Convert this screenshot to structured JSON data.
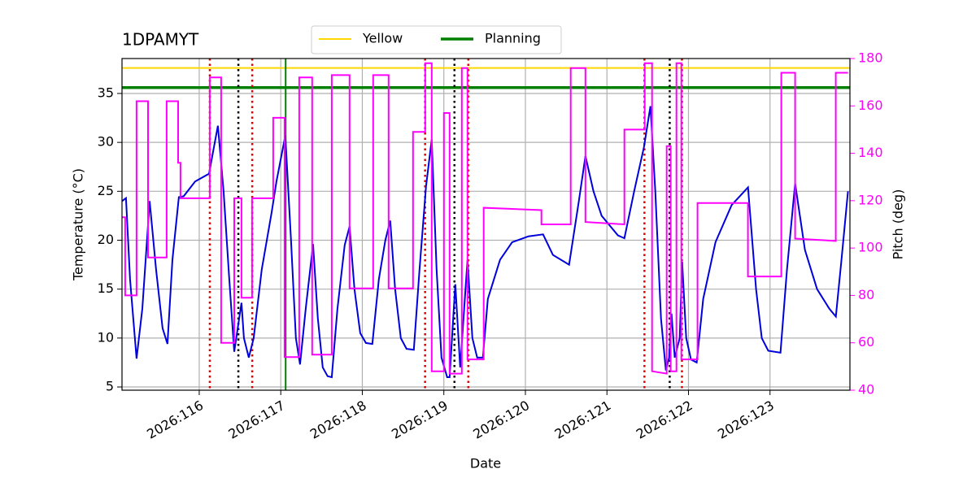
{
  "chart_data": {
    "type": "line",
    "title": "1DPAMYT",
    "x_label": "Date",
    "y_label": "Temperature (°C)",
    "y2_label": "Pitch (deg)",
    "y2_color": "#ff00ff",
    "xlim": [
      115.053,
      123.98
    ],
    "ylim": [
      4.67,
      38.57
    ],
    "y2lim": [
      40,
      180
    ],
    "xticks": [
      {
        "value": 116,
        "label": "2026:116"
      },
      {
        "value": 117,
        "label": "2026:117"
      },
      {
        "value": 118,
        "label": "2026:118"
      },
      {
        "value": 119,
        "label": "2026:119"
      },
      {
        "value": 120,
        "label": "2026:120"
      },
      {
        "value": 121,
        "label": "2026:121"
      },
      {
        "value": 122,
        "label": "2026:122"
      },
      {
        "value": 123,
        "label": "2026:123"
      }
    ],
    "yticks": [
      5,
      10,
      15,
      20,
      25,
      30,
      35
    ],
    "y2ticks": [
      40,
      60,
      80,
      100,
      120,
      140,
      160,
      180
    ],
    "grid": true,
    "legend": "top",
    "hlines": [
      {
        "name": "Yellow",
        "color": "#ffd700",
        "y": 37.6,
        "width": 2
      },
      {
        "name": "Planning",
        "color": "#008000",
        "y": 35.6,
        "width": 3.5
      }
    ],
    "vlines": [
      {
        "x": 116.13,
        "color": "#e00000",
        "dash": "dotted"
      },
      {
        "x": 116.65,
        "color": "#e00000",
        "dash": "dotted"
      },
      {
        "x": 118.77,
        "color": "#e00000",
        "dash": "dotted"
      },
      {
        "x": 119.3,
        "color": "#e00000",
        "dash": "dotted"
      },
      {
        "x": 121.46,
        "color": "#e00000",
        "dash": "dotted"
      },
      {
        "x": 121.92,
        "color": "#e00000",
        "dash": "dotted"
      },
      {
        "x": 116.48,
        "color": "#000000",
        "dash": "dotted"
      },
      {
        "x": 119.13,
        "color": "#000000",
        "dash": "dotted"
      },
      {
        "x": 121.77,
        "color": "#000000",
        "dash": "dotted"
      },
      {
        "x": 117.06,
        "color": "#008000",
        "dash": "solid"
      }
    ],
    "series": [
      {
        "color": "#0000dd",
        "axis": "y",
        "x": [
          115.053,
          115.102,
          115.152,
          115.232,
          115.302,
          115.392,
          115.471,
          115.551,
          115.611,
          115.671,
          115.75,
          115.81,
          115.95,
          116.12,
          116.229,
          116.299,
          116.369,
          116.429,
          116.518,
          116.548,
          116.608,
          116.668,
          116.767,
          116.887,
          116.947,
          117.056,
          117.126,
          117.186,
          117.236,
          117.306,
          117.396,
          117.455,
          117.515,
          117.575,
          117.625,
          117.695,
          117.784,
          117.844,
          117.904,
          117.974,
          118.044,
          118.123,
          118.203,
          118.283,
          118.343,
          118.402,
          118.472,
          118.542,
          118.632,
          118.702,
          118.781,
          118.851,
          118.911,
          118.971,
          119.041,
          119.071,
          119.14,
          119.2,
          119.29,
          119.35,
          119.409,
          119.479,
          119.539,
          119.689,
          119.838,
          120.038,
          120.217,
          120.337,
          120.536,
          120.656,
          120.736,
          120.835,
          120.935,
          121.134,
          121.214,
          121.334,
          121.454,
          121.533,
          121.593,
          121.663,
          121.723,
          121.763,
          121.792,
          121.832,
          121.892,
          121.922,
          121.972,
          122.031,
          122.101,
          122.181,
          122.331,
          122.53,
          122.73,
          122.829,
          122.899,
          122.979,
          123.128,
          123.208,
          123.308,
          123.428,
          123.577,
          123.727,
          123.807,
          123.876,
          123.956
        ],
        "values": [
          24,
          24.3,
          16,
          7.9,
          13,
          24,
          17,
          11,
          9.4,
          18,
          24.4,
          24.5,
          26,
          26.8,
          31.7,
          25,
          16,
          8.6,
          13.6,
          10,
          8,
          10,
          17,
          22.8,
          26,
          30.7,
          20,
          10,
          7.3,
          13,
          19.6,
          12,
          7,
          6.1,
          6,
          13,
          19.5,
          21.4,
          15,
          10.5,
          9.5,
          9.4,
          16,
          20,
          22,
          15,
          10,
          8.9,
          8.8,
          17,
          25.5,
          30.3,
          17,
          8,
          6,
          6,
          15.5,
          7,
          18,
          10,
          8,
          8,
          14,
          18,
          19.8,
          20.4,
          20.6,
          18.5,
          17.5,
          24,
          28.6,
          25,
          22.5,
          20.5,
          20.2,
          25,
          29.5,
          33.7,
          25,
          12,
          6.7,
          8,
          12.5,
          8,
          10,
          17.8,
          10,
          7.8,
          7.5,
          14,
          19.8,
          23.6,
          25.4,
          15,
          10,
          8.7,
          8.5,
          17,
          25.8,
          19,
          15,
          13,
          12.2,
          18,
          25
        ]
      },
      {
        "color": "#ff00ff",
        "axis": "y2",
        "x": [
          115.053,
          115.092,
          115.092,
          115.232,
          115.232,
          115.372,
          115.372,
          115.601,
          115.601,
          115.741,
          115.741,
          115.77,
          115.77,
          116.129,
          116.129,
          116.269,
          116.269,
          116.429,
          116.429,
          116.518,
          116.518,
          116.648,
          116.648,
          116.907,
          116.907,
          117.047,
          117.047,
          117.226,
          117.226,
          117.385,
          117.385,
          117.625,
          117.625,
          117.844,
          117.844,
          118.133,
          118.133,
          118.323,
          118.323,
          118.622,
          118.622,
          118.771,
          118.771,
          118.851,
          118.851,
          119.001,
          119.001,
          119.071,
          119.071,
          119.22,
          119.22,
          119.29,
          119.29,
          119.489,
          119.489,
          120.197,
          120.197,
          120.556,
          120.556,
          120.736,
          120.736,
          121.214,
          121.214,
          121.463,
          121.463,
          121.553,
          121.553,
          121.733,
          121.733,
          121.782,
          121.782,
          121.852,
          121.852,
          121.912,
          121.912,
          122.111,
          122.111,
          122.729,
          122.729,
          123.138,
          123.138,
          123.308,
          123.308,
          123.806,
          123.806,
          123.956
        ],
        "values": [
          113,
          113,
          80,
          80,
          162,
          162,
          96,
          96,
          162,
          162,
          136,
          136,
          121,
          121,
          172,
          172,
          60,
          60,
          121,
          121,
          79,
          79,
          121,
          121,
          155,
          155,
          54,
          54,
          172,
          172,
          55,
          55,
          173,
          173,
          83,
          83,
          173,
          173,
          83,
          83,
          149,
          149,
          178,
          178,
          48,
          48,
          157,
          157,
          47,
          47,
          176,
          176,
          53,
          53,
          117,
          116,
          110,
          110,
          176,
          176,
          111,
          110,
          150,
          150,
          178,
          178,
          48,
          47,
          143,
          143,
          48,
          48,
          178,
          178,
          53,
          53,
          119,
          119,
          88,
          88,
          174,
          174,
          104,
          103,
          174,
          174
        ]
      }
    ]
  }
}
